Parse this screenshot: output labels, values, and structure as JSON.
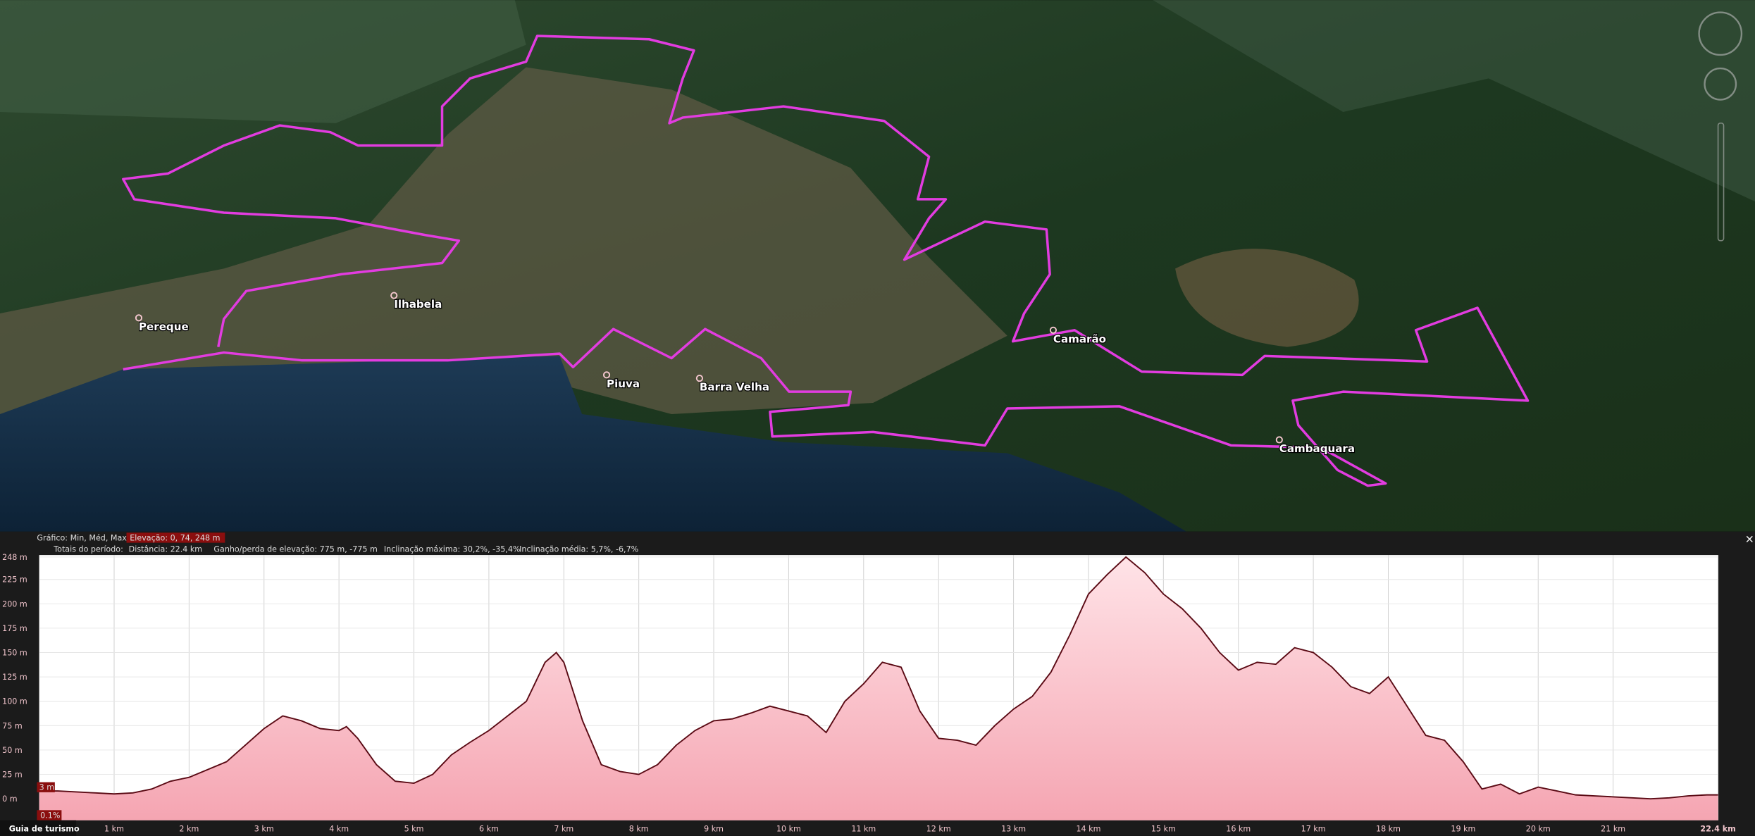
{
  "map": {
    "places": [
      "Pereque",
      "Ilhabela",
      "Piuva",
      "Barra Velha",
      "Camarão",
      "Cambaquara"
    ]
  },
  "stats": {
    "chart_mode": "Gráfico: Min, Méd, Max",
    "elevation": "Elevação: 0, 74, 248 m",
    "totals": "Totais do período:",
    "distance": "Distância: 22.4 km",
    "gain_loss": "Ganho/perda de elevação: 775 m, -775 m",
    "max_slope": "Inclinação máxima: 30,2%, -35,4%",
    "avg_slope": "Inclinação média: 5,7%, -6,7%"
  },
  "cursor": {
    "elevation_label": "3 m",
    "slope_label": "0.1%"
  },
  "close": "×",
  "tour_guide": "Guia de turismo",
  "chart_data": {
    "type": "area",
    "color": "#5a0a14",
    "fill": "#f8b4bf",
    "grid": true,
    "x": [
      0,
      0.25,
      0.5,
      0.75,
      1,
      1.25,
      1.5,
      1.75,
      2,
      2.25,
      2.5,
      2.75,
      3,
      3.25,
      3.5,
      3.75,
      4,
      4.1,
      4.25,
      4.5,
      4.75,
      5,
      5.25,
      5.5,
      5.75,
      6,
      6.25,
      6.5,
      6.75,
      6.9,
      7,
      7.25,
      7.5,
      7.75,
      8,
      8.25,
      8.5,
      8.75,
      9,
      9.25,
      9.5,
      9.75,
      10,
      10.25,
      10.5,
      10.75,
      11,
      11.25,
      11.5,
      11.75,
      12,
      12.25,
      12.5,
      12.75,
      13,
      13.25,
      13.5,
      13.75,
      14,
      14.25,
      14.5,
      14.75,
      15,
      15.25,
      15.5,
      15.75,
      16,
      16.25,
      16.5,
      16.75,
      17,
      17.25,
      17.5,
      17.75,
      18,
      18.25,
      18.5,
      18.75,
      19,
      19.25,
      19.5,
      19.75,
      20,
      20.25,
      20.5,
      20.75,
      21,
      21.25,
      21.5,
      21.75,
      22,
      22.25,
      22.4
    ],
    "values": [
      8,
      8,
      7,
      6,
      5,
      6,
      10,
      18,
      22,
      30,
      38,
      55,
      72,
      85,
      80,
      72,
      70,
      74,
      62,
      35,
      18,
      16,
      25,
      45,
      58,
      70,
      85,
      100,
      140,
      150,
      140,
      80,
      35,
      28,
      25,
      35,
      55,
      70,
      80,
      82,
      88,
      95,
      90,
      85,
      68,
      100,
      118,
      140,
      135,
      90,
      62,
      60,
      55,
      75,
      92,
      105,
      130,
      168,
      210,
      230,
      248,
      232,
      210,
      195,
      175,
      150,
      132,
      140,
      138,
      155,
      150,
      135,
      115,
      108,
      125,
      95,
      65,
      60,
      38,
      10,
      15,
      5,
      12,
      8,
      4,
      3,
      2,
      1,
      0,
      1,
      3,
      4,
      4
    ],
    "xlim": [
      0,
      22.4
    ],
    "ylim": [
      -22,
      250
    ],
    "xticks": [
      {
        "value": 1,
        "label": "1 km"
      },
      {
        "value": 2,
        "label": "2 km"
      },
      {
        "value": 3,
        "label": "3 km"
      },
      {
        "value": 4,
        "label": "4 km"
      },
      {
        "value": 5,
        "label": "5 km"
      },
      {
        "value": 6,
        "label": "6 km"
      },
      {
        "value": 7,
        "label": "7 km"
      },
      {
        "value": 8,
        "label": "8 km"
      },
      {
        "value": 9,
        "label": "9 km"
      },
      {
        "value": 10,
        "label": "10 km"
      },
      {
        "value": 11,
        "label": "11 km"
      },
      {
        "value": 12,
        "label": "12 km"
      },
      {
        "value": 13,
        "label": "13 km"
      },
      {
        "value": 14,
        "label": "14 km"
      },
      {
        "value": 15,
        "label": "15 km"
      },
      {
        "value": 16,
        "label": "16 km"
      },
      {
        "value": 17,
        "label": "17 km"
      },
      {
        "value": 18,
        "label": "18 km"
      },
      {
        "value": 19,
        "label": "19 km"
      },
      {
        "value": 20,
        "label": "20 km"
      },
      {
        "value": 21,
        "label": "21 km"
      },
      {
        "value": 22.4,
        "label": "22.4 km"
      }
    ],
    "yticks": [
      {
        "value": 0,
        "label": "0 m"
      },
      {
        "value": 25,
        "label": "25 m"
      },
      {
        "value": 50,
        "label": "50 m"
      },
      {
        "value": 75,
        "label": "75 m"
      },
      {
        "value": 100,
        "label": "100 m"
      },
      {
        "value": 125,
        "label": "125 m"
      },
      {
        "value": 150,
        "label": "150 m"
      },
      {
        "value": 175,
        "label": "175 m"
      },
      {
        "value": 200,
        "label": "200 m"
      },
      {
        "value": 225,
        "label": "225 m"
      },
      {
        "value": 248,
        "label": "248 m"
      }
    ]
  }
}
